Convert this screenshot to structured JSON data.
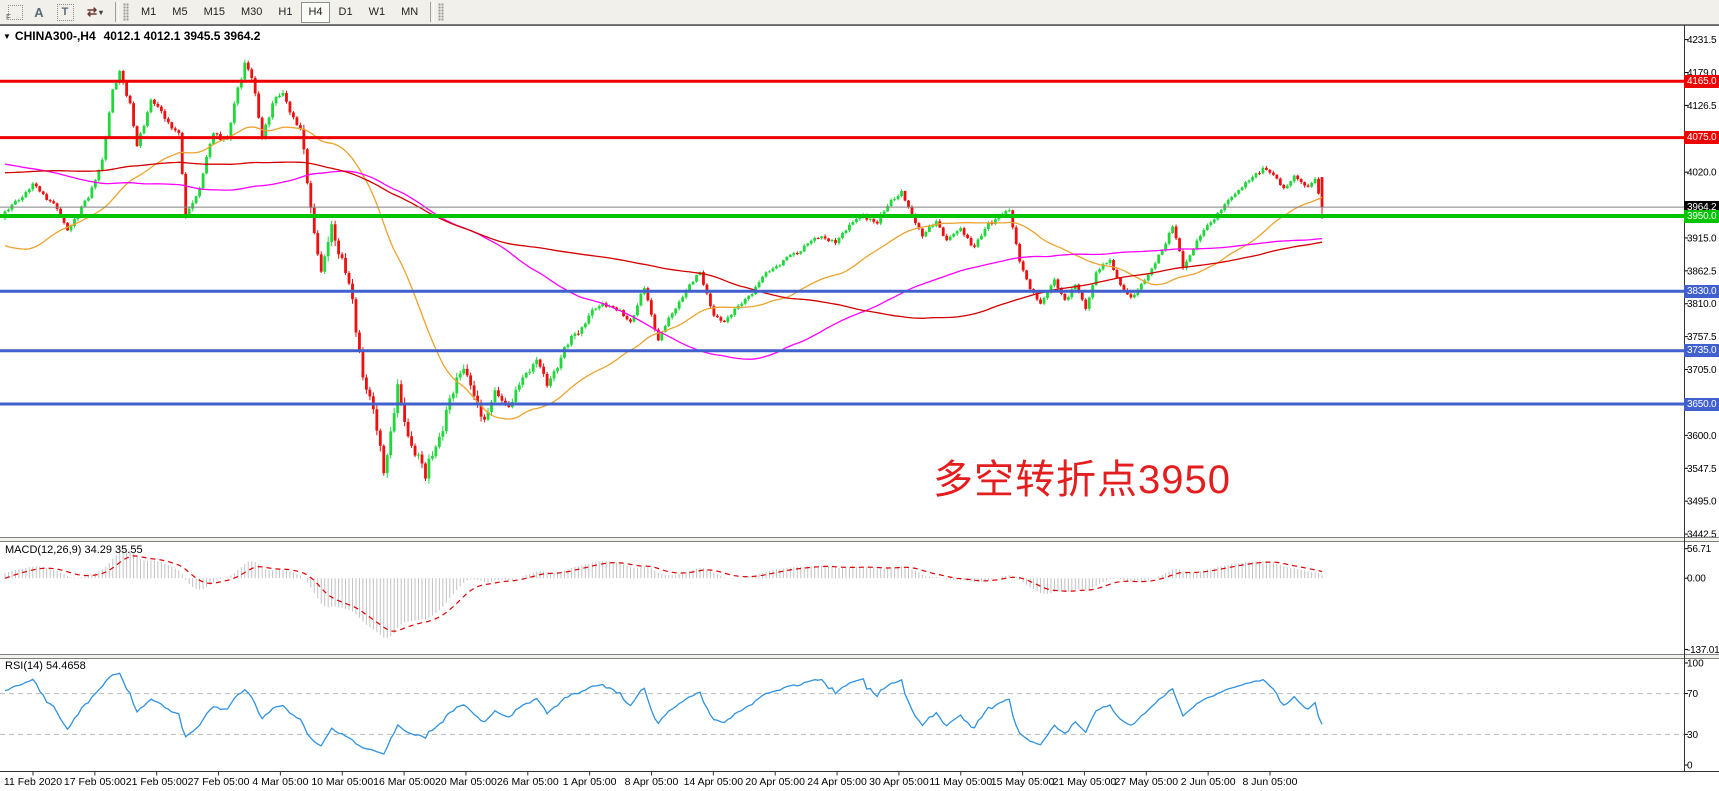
{
  "toolbar": {
    "tool_frame_label": "F",
    "tool_text_label": "A",
    "tool_textbox_label": "T",
    "tool_arrows_glyph": "⇄",
    "tool_arrows_caret": "▾",
    "timeframes": [
      "M1",
      "M5",
      "M15",
      "M30",
      "H1",
      "H4",
      "D1",
      "W1",
      "MN"
    ],
    "active_timeframe": "H4"
  },
  "main_chart": {
    "collapse_icon": "▼",
    "title_symbol": "CHINA300-,H4",
    "title_ohlc": "4012.1 4012.1 3945.5 3964.2",
    "annotation": {
      "text": "多空转折点3950",
      "color": "#e41e1e"
    },
    "value_range": {
      "top": 4250,
      "bottom": 3441
    },
    "y_ticks": [
      4231.5,
      4179.0,
      4126.5,
      4020.0,
      3915.0,
      3862.5,
      3810.0,
      3757.5,
      3705.0,
      3600.0,
      3547.5,
      3495.0,
      3442.5
    ],
    "levels": [
      {
        "value": 4165.0,
        "label": "4165.0",
        "line_color": "#ee0000",
        "badge_bg": "#ee0000",
        "width": 3
      },
      {
        "value": 4075.0,
        "label": "4075.0",
        "line_color": "#ee0000",
        "badge_bg": "#ee0000",
        "width": 3
      },
      {
        "value": 3964.2,
        "label": "3964.2",
        "line_color": "#808080",
        "badge_bg": "#000000",
        "width": 1,
        "current_price": true
      },
      {
        "value": 3950.0,
        "label": "3950.0",
        "line_color": "#00c400",
        "badge_bg": "#00c400",
        "width": 4
      },
      {
        "value": 3830.0,
        "label": "3830.0",
        "line_color": "#4060ce",
        "badge_bg": "#4060ce",
        "width": 3
      },
      {
        "value": 3735.0,
        "label": "3735.0",
        "line_color": "#4060ce",
        "badge_bg": "#4060ce",
        "width": 3
      },
      {
        "value": 3650.0,
        "label": "3650.0",
        "line_color": "#4060ce",
        "badge_bg": "#4060ce",
        "width": 3
      }
    ]
  },
  "indicators": {
    "macd": {
      "label": "MACD(12,26,9) 34.29 35.55",
      "params": [
        12,
        26,
        9
      ],
      "values": [
        34.29,
        35.55
      ],
      "y_ticks": [
        {
          "v": 56.71,
          "label": "56.71"
        },
        {
          "v": 0,
          "label": "0.00"
        },
        {
          "v": -137.01,
          "label": "-137.01"
        }
      ],
      "range": {
        "top": 60,
        "bottom": -140
      },
      "histogram_color": "#c2c2c2",
      "signal_color": "#dd0000"
    },
    "rsi": {
      "label": "RSI(14) 54.4658",
      "period": 14,
      "value": 54.4658,
      "y_ticks": [
        {
          "v": 100,
          "label": "100"
        },
        {
          "v": 70,
          "label": "70"
        },
        {
          "v": 30,
          "label": "30"
        },
        {
          "v": 0,
          "label": "0"
        }
      ],
      "levels": [
        70,
        30
      ],
      "line_color": "#2f92e0",
      "level_color": "#bbbbbb"
    }
  },
  "x_axis": {
    "labels": [
      "11 Feb 2020",
      "17 Feb 05:00",
      "21 Feb 05:00",
      "27 Feb 05:00",
      "4 Mar 05:00",
      "10 Mar 05:00",
      "16 Mar 05:00",
      "20 Mar 05:00",
      "26 Mar 05:00",
      "1 Apr 05:00",
      "8 Apr 05:00",
      "14 Apr 05:00",
      "20 Apr 05:00",
      "24 Apr 05:00",
      "30 Apr 05:00",
      "11 May 05:00",
      "15 May 05:00",
      "21 May 05:00",
      "27 May 05:00",
      "2 Jun 05:00",
      "8 Jun 05:00"
    ]
  },
  "chart_data": {
    "type": "candlestick",
    "symbol": "CHINA300-",
    "timeframe": "H4",
    "bars": 380,
    "bull_color": "#1fd83a",
    "bear_color": "#ee0f0f",
    "current_ohlc": {
      "o": 4012.1,
      "h": 4012.1,
      "l": 3945.5,
      "c": 3964.2
    },
    "ma_lines": [
      {
        "name": "ma-fast-orange",
        "color": "#eda32e",
        "window": 40
      },
      {
        "name": "ma-medium-magenta",
        "color": "#ff00ff",
        "window": 115
      },
      {
        "name": "ma-slow-red",
        "color": "#d40000",
        "window": 175
      }
    ],
    "pre_path": [
      [
        -220,
        3885
      ],
      [
        -170,
        3935
      ],
      [
        -140,
        3995
      ],
      [
        -110,
        4090
      ],
      [
        -75,
        4135
      ],
      [
        -50,
        4085
      ],
      [
        -34,
        4000
      ],
      [
        -28,
        3805
      ],
      [
        -20,
        3845
      ],
      [
        -12,
        3895
      ],
      [
        -6,
        3922
      ],
      [
        -1,
        3950
      ]
    ],
    "price_path": [
      [
        0,
        3955
      ],
      [
        8,
        3998
      ],
      [
        14,
        3970
      ],
      [
        18,
        3928
      ],
      [
        24,
        3980
      ],
      [
        28,
        4040
      ],
      [
        31,
        4150
      ],
      [
        33,
        4183
      ],
      [
        36,
        4125
      ],
      [
        38,
        4062
      ],
      [
        42,
        4135
      ],
      [
        46,
        4108
      ],
      [
        50,
        4080
      ],
      [
        52,
        3952
      ],
      [
        56,
        3995
      ],
      [
        60,
        4085
      ],
      [
        64,
        4068
      ],
      [
        67,
        4155
      ],
      [
        69,
        4195
      ],
      [
        71,
        4168
      ],
      [
        74,
        4080
      ],
      [
        77,
        4128
      ],
      [
        80,
        4145
      ],
      [
        83,
        4105
      ],
      [
        85,
        4090
      ],
      [
        87,
        4000
      ],
      [
        89,
        3930
      ],
      [
        91,
        3858
      ],
      [
        94,
        3928
      ],
      [
        96,
        3900
      ],
      [
        99,
        3840
      ],
      [
        103,
        3700
      ],
      [
        106,
        3638
      ],
      [
        109,
        3545
      ],
      [
        111,
        3610
      ],
      [
        113,
        3672
      ],
      [
        116,
        3600
      ],
      [
        119,
        3565
      ],
      [
        121,
        3532
      ],
      [
        123,
        3578
      ],
      [
        126,
        3610
      ],
      [
        130,
        3690
      ],
      [
        132,
        3712
      ],
      [
        135,
        3655
      ],
      [
        138,
        3632
      ],
      [
        141,
        3665
      ],
      [
        145,
        3648
      ],
      [
        149,
        3690
      ],
      [
        153,
        3725
      ],
      [
        156,
        3678
      ],
      [
        160,
        3728
      ],
      [
        164,
        3762
      ],
      [
        168,
        3790
      ],
      [
        172,
        3812
      ],
      [
        176,
        3800
      ],
      [
        180,
        3782
      ],
      [
        184,
        3835
      ],
      [
        188,
        3752
      ],
      [
        192,
        3795
      ],
      [
        196,
        3830
      ],
      [
        200,
        3862
      ],
      [
        204,
        3788
      ],
      [
        207,
        3782
      ],
      [
        211,
        3805
      ],
      [
        215,
        3830
      ],
      [
        219,
        3858
      ],
      [
        223,
        3875
      ],
      [
        227,
        3890
      ],
      [
        231,
        3905
      ],
      [
        235,
        3920
      ],
      [
        239,
        3905
      ],
      [
        243,
        3938
      ],
      [
        247,
        3950
      ],
      [
        251,
        3940
      ],
      [
        255,
        3975
      ],
      [
        258,
        3990
      ],
      [
        260,
        3962
      ],
      [
        264,
        3920
      ],
      [
        268,
        3940
      ],
      [
        271,
        3912
      ],
      [
        275,
        3928
      ],
      [
        279,
        3900
      ],
      [
        283,
        3938
      ],
      [
        286,
        3950
      ],
      [
        289,
        3958
      ],
      [
        292,
        3880
      ],
      [
        295,
        3832
      ],
      [
        298,
        3812
      ],
      [
        302,
        3845
      ],
      [
        305,
        3818
      ],
      [
        308,
        3840
      ],
      [
        311,
        3803
      ],
      [
        314,
        3860
      ],
      [
        318,
        3878
      ],
      [
        321,
        3840
      ],
      [
        324,
        3818
      ],
      [
        327,
        3842
      ],
      [
        330,
        3862
      ],
      [
        333,
        3898
      ],
      [
        336,
        3932
      ],
      [
        339,
        3870
      ],
      [
        342,
        3900
      ],
      [
        346,
        3935
      ],
      [
        350,
        3960
      ],
      [
        354,
        3988
      ],
      [
        358,
        4005
      ],
      [
        362,
        4028
      ],
      [
        365,
        4012
      ],
      [
        368,
        3995
      ],
      [
        371,
        4010
      ],
      [
        374,
        3998
      ],
      [
        377,
        4008
      ],
      [
        379,
        3964.2
      ]
    ]
  }
}
